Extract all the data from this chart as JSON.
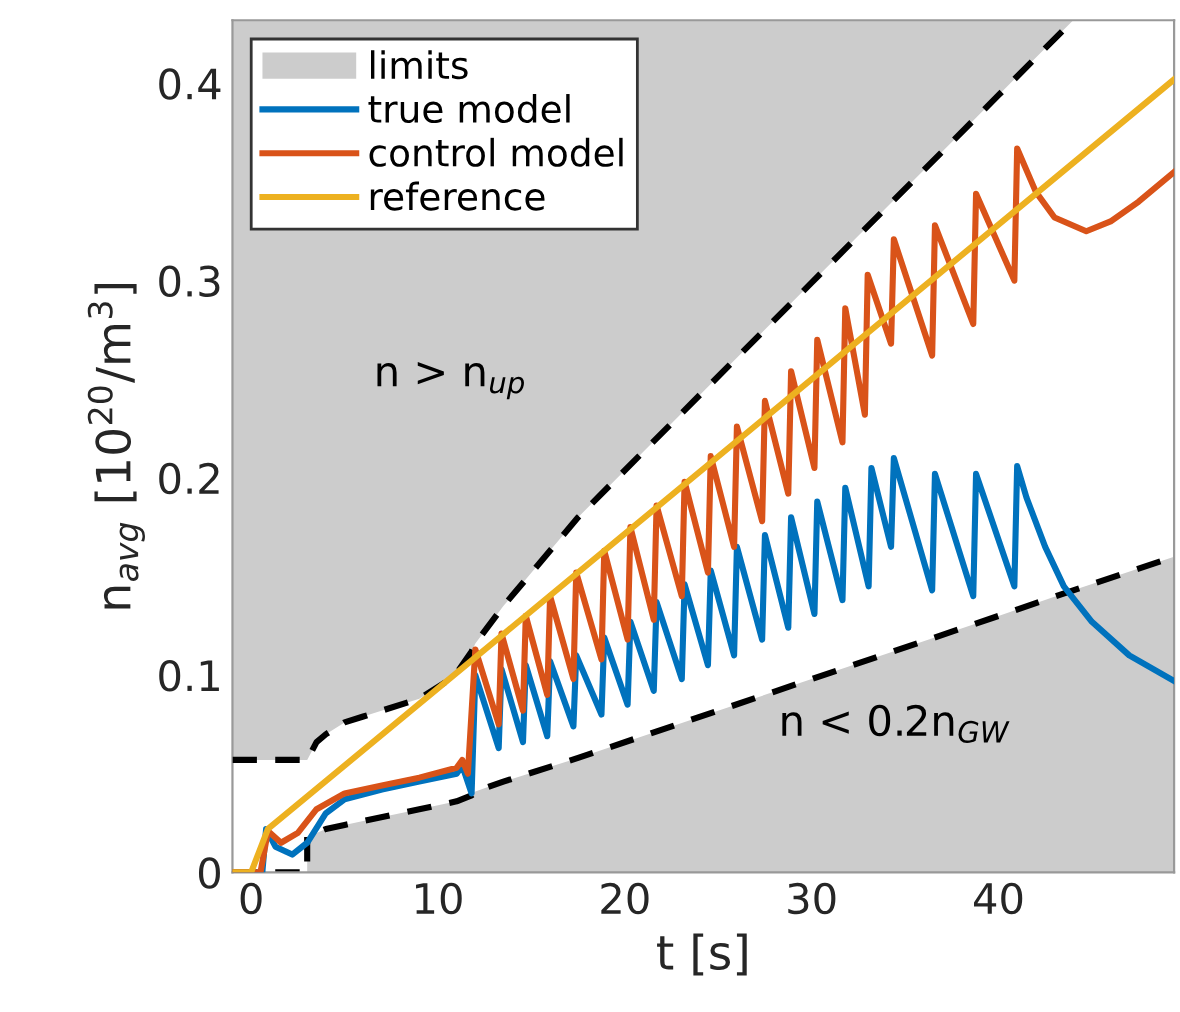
{
  "chart_data": {
    "type": "line",
    "xlabel": "t [s]",
    "ylabel": "n$_{avg}$ [10$^{20}$/m$^{3}$]",
    "xlim": [
      -1,
      49.4
    ],
    "ylim": [
      0,
      0.432
    ],
    "xticks": [
      0,
      10,
      20,
      30,
      40
    ],
    "yticks": [
      0,
      0.1,
      0.2,
      0.3,
      0.4
    ],
    "grid": false,
    "legend": "top left",
    "annotations": [
      "n > n$_{up}$",
      "n < 0.2n$_{GW}$"
    ],
    "series": [
      {
        "name": "limits",
        "type": "area",
        "color": "#cccccc",
        "line_style": "dashed",
        "x": [
          -1,
          3,
          3,
          3.5,
          4,
          5,
          6,
          9,
          10.5,
          11,
          11.8,
          12,
          13.5,
          17.5,
          30,
          40,
          44,
          49.4
        ],
        "values": [
          0,
          0,
          0.018,
          0.02,
          0.022,
          0.024,
          0.026,
          0.032,
          0.035,
          0.036,
          0.039,
          0.041,
          0.046,
          0.058,
          0.098,
          0.13,
          0.143,
          0.16
        ]
      },
      {
        "type": "line",
        "color": "#000000",
        "line_style": "dashed",
        "x": [
          -1,
          3,
          3,
          3.5,
          4,
          5,
          6,
          9,
          10.5,
          11,
          11.8,
          12,
          13.5,
          17.5,
          30,
          40,
          44
        ],
        "values": [
          0.057,
          0.057,
          0.057,
          0.066,
          0.07,
          0.076,
          0.079,
          0.088,
          0.097,
          0.101,
          0.112,
          0.116,
          0.135,
          0.18,
          0.299,
          0.394,
          0.432
        ]
      },
      {
        "name": "true model",
        "color": "#0072bd",
        "x": [
          -1,
          0.6,
          0.8,
          1.3,
          2.2,
          3,
          4,
          5,
          7,
          9,
          11,
          11.3,
          11.8,
          12,
          13.25,
          13.4,
          14.55,
          14.7,
          15.85,
          16.0,
          17.25,
          17.4,
          18.75,
          18.9,
          20.15,
          20.3,
          21.55,
          21.7,
          23.05,
          23.2,
          24.45,
          24.6,
          25.85,
          26.0,
          27.35,
          27.5,
          28.75,
          28.9,
          30.15,
          30.3,
          31.65,
          31.8,
          33.05,
          33.2,
          34.25,
          34.4,
          36.45,
          36.6,
          38.65,
          38.8,
          40.85,
          41.0,
          41.5,
          42.5,
          43.5,
          45,
          47,
          49.4
        ],
        "values": [
          0,
          0,
          0.022,
          0.013,
          0.009,
          0.015,
          0.03,
          0.037,
          0.042,
          0.046,
          0.05,
          0.054,
          0.04,
          0.1,
          0.063,
          0.103,
          0.066,
          0.105,
          0.069,
          0.107,
          0.074,
          0.11,
          0.08,
          0.119,
          0.085,
          0.127,
          0.092,
          0.137,
          0.098,
          0.146,
          0.105,
          0.153,
          0.11,
          0.165,
          0.118,
          0.171,
          0.124,
          0.18,
          0.131,
          0.188,
          0.138,
          0.195,
          0.145,
          0.205,
          0.165,
          0.21,
          0.143,
          0.202,
          0.14,
          0.202,
          0.145,
          0.206,
          0.19,
          0.165,
          0.145,
          0.127,
          0.11,
          0.097
        ]
      },
      {
        "name": "control model",
        "color": "#d95319",
        "x": [
          -1,
          0.5,
          0.9,
          1.6,
          2.5,
          3.5,
          5,
          7,
          9,
          11,
          11.3,
          11.6,
          12,
          13.25,
          13.4,
          14.55,
          14.7,
          15.85,
          16.0,
          17.25,
          17.4,
          18.75,
          18.9,
          20.15,
          20.3,
          21.55,
          21.7,
          23.05,
          23.2,
          24.45,
          24.6,
          25.85,
          26.0,
          27.35,
          27.5,
          28.75,
          28.9,
          30.15,
          30.3,
          31.65,
          31.8,
          32.85,
          33.0,
          34.25,
          34.4,
          36.45,
          36.6,
          38.65,
          38.8,
          40.85,
          41.0,
          42,
          43,
          44.7,
          46,
          47.5,
          49.4
        ],
        "values": [
          0,
          0,
          0.021,
          0.015,
          0.02,
          0.032,
          0.04,
          0.044,
          0.048,
          0.053,
          0.057,
          0.05,
          0.113,
          0.075,
          0.121,
          0.082,
          0.13,
          0.09,
          0.14,
          0.098,
          0.152,
          0.108,
          0.163,
          0.118,
          0.175,
          0.128,
          0.186,
          0.14,
          0.198,
          0.152,
          0.211,
          0.165,
          0.226,
          0.178,
          0.239,
          0.192,
          0.254,
          0.205,
          0.27,
          0.218,
          0.286,
          0.232,
          0.303,
          0.268,
          0.321,
          0.262,
          0.328,
          0.278,
          0.344,
          0.3,
          0.367,
          0.345,
          0.332,
          0.325,
          0.33,
          0.34,
          0.355
        ]
      },
      {
        "name": "reference",
        "color": "#edb120",
        "x": [
          -1,
          0,
          0.9,
          49.4
        ],
        "values": [
          0,
          0,
          0.022,
          0.402
        ]
      }
    ]
  }
}
